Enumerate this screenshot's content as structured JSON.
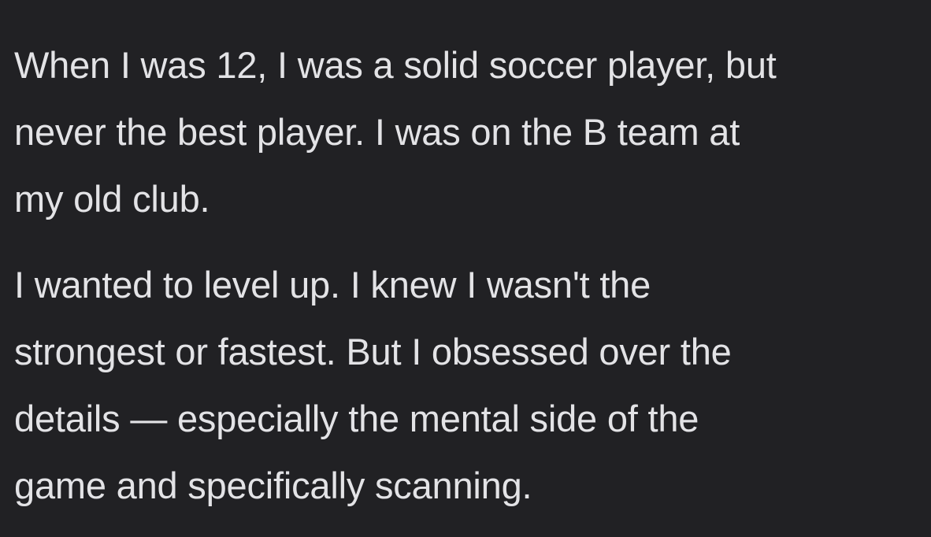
{
  "colors": {
    "background": "#212124",
    "text": "#e3e3e6"
  },
  "post": {
    "paragraphs": [
      "When I was 12, I was a solid soccer player, but\nnever the best player. I was on the B team at\nmy old club.",
      "I wanted to level up. I knew I wasn't the\nstrongest or fastest. But I obsessed over the\ndetails — especially the mental side of the\ngame and specifically scanning."
    ]
  }
}
